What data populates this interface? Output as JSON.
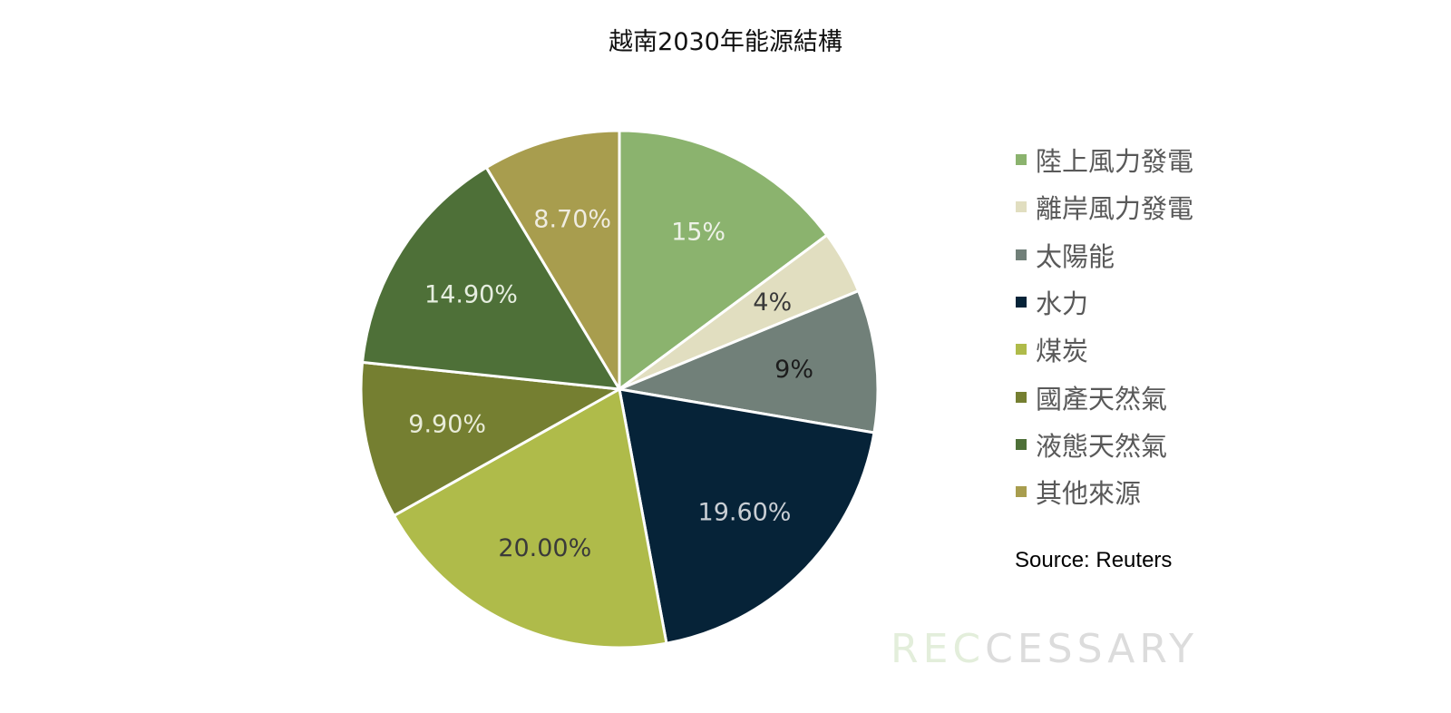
{
  "chart_data": {
    "type": "pie",
    "title": "越南2030年能源結構",
    "categories": [
      "陸上風力發電",
      "離岸風力發電",
      "太陽能",
      "水力",
      "煤炭",
      "國產天然氣",
      "液態天然氣",
      "其他來源"
    ],
    "values": [
      15,
      4,
      9,
      19.6,
      20.0,
      9.9,
      14.9,
      8.7
    ],
    "data_labels": [
      "15%",
      "4%",
      "9%",
      "19.60%",
      "20.00%",
      "9.90%",
      "14.90%",
      "8.70%"
    ],
    "colors": [
      "#8bb36e",
      "#e1dec0",
      "#718079",
      "#062338",
      "#afbb4a",
      "#757f31",
      "#4e7038",
      "#a89d4e"
    ],
    "label_colors": [
      "#eef2e8",
      "#3a3a3a",
      "#1c1c1c",
      "#c9ced4",
      "#3a3a3a",
      "#e9ecd9",
      "#e6eee0",
      "#efece0"
    ],
    "start_angle_deg": 0,
    "direction": "clockwise",
    "legend_position": "right"
  },
  "source": "Source: Reuters",
  "watermark": {
    "lead": "REC",
    "rest": "CESSARY"
  }
}
